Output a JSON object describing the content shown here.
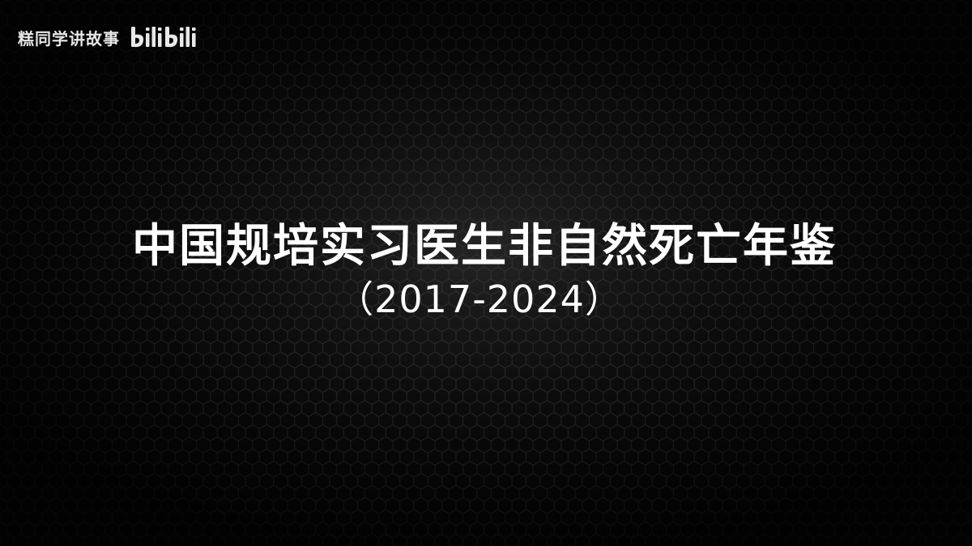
{
  "watermark": {
    "author": "糕同学讲故事",
    "logo_text": "bilibili",
    "logo_icon": "bilibili-logo-icon"
  },
  "title": {
    "main": "中国规培实习医生非自然死亡年鉴",
    "sub": "（2017-2024）"
  },
  "colors": {
    "background": "#0a0a0a",
    "hex_line": "#2a2a2a",
    "text": "#ffffff"
  }
}
